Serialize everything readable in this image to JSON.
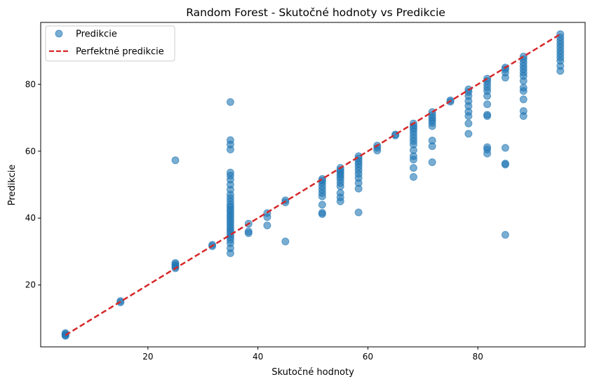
{
  "chart_data": {
    "type": "scatter",
    "title": "Random Forest - Skutočné hodnoty vs Predikcie",
    "xlabel": "Skutočné hodnoty",
    "ylabel": "Predikcie",
    "xlim": [
      0.5,
      99.5
    ],
    "ylim": [
      1.5,
      98.5
    ],
    "xticks": [
      20,
      40,
      60,
      80
    ],
    "yticks": [
      20,
      40,
      60,
      80
    ],
    "grid": false,
    "legend_position": "upper-left",
    "legend": [
      "Predikcie",
      "Perfektné predikcie"
    ],
    "colors": {
      "points": "#1f77b4",
      "perfect_line": "#d62728"
    },
    "series": [
      {
        "name": "Predikcie",
        "points": [
          [
            5,
            5
          ],
          [
            5,
            5.3
          ],
          [
            5,
            5.6
          ],
          [
            5,
            4.8
          ],
          [
            15,
            14.8
          ],
          [
            15,
            15.2
          ],
          [
            25,
            25
          ],
          [
            25,
            25.4
          ],
          [
            25,
            25.8
          ],
          [
            25,
            26.2
          ],
          [
            25,
            26.6
          ],
          [
            25,
            57.3
          ],
          [
            31.7,
            31.6
          ],
          [
            31.7,
            32
          ],
          [
            35,
            29.5
          ],
          [
            35,
            31
          ],
          [
            35,
            32.5
          ],
          [
            35,
            33.5
          ],
          [
            35,
            34.3
          ],
          [
            35,
            35
          ],
          [
            35,
            35.8
          ],
          [
            35,
            36.5
          ],
          [
            35,
            37.2
          ],
          [
            35,
            38
          ],
          [
            35,
            38.8
          ],
          [
            35,
            39.5
          ],
          [
            35,
            40.3
          ],
          [
            35,
            41
          ],
          [
            35,
            41.8
          ],
          [
            35,
            42.5
          ],
          [
            35,
            43.3
          ],
          [
            35,
            44
          ],
          [
            35,
            45
          ],
          [
            35,
            46
          ],
          [
            35,
            47
          ],
          [
            35,
            48.5
          ],
          [
            35,
            50
          ],
          [
            35,
            51.5
          ],
          [
            35,
            52.7
          ],
          [
            35,
            53.6
          ],
          [
            35,
            60.5
          ],
          [
            35,
            62
          ],
          [
            35,
            63.3
          ],
          [
            35,
            74.7
          ],
          [
            38.3,
            35.5
          ],
          [
            38.3,
            36
          ],
          [
            38.3,
            38.3
          ],
          [
            41.7,
            37.8
          ],
          [
            41.7,
            40.3
          ],
          [
            41.7,
            41.5
          ],
          [
            45,
            33
          ],
          [
            45,
            44.7
          ],
          [
            45,
            45.3
          ],
          [
            51.7,
            41.2
          ],
          [
            51.7,
            41.6
          ],
          [
            51.7,
            44
          ],
          [
            51.7,
            46.5
          ],
          [
            51.7,
            47.5
          ],
          [
            51.7,
            48.5
          ],
          [
            51.7,
            49.5
          ],
          [
            51.7,
            50.5
          ],
          [
            51.7,
            51.2
          ],
          [
            51.7,
            51.7
          ],
          [
            55,
            45
          ],
          [
            55,
            46.2
          ],
          [
            55,
            47.5
          ],
          [
            55,
            49.5
          ],
          [
            55,
            50.5
          ],
          [
            55,
            51.5
          ],
          [
            55,
            52.3
          ],
          [
            55,
            53
          ],
          [
            55,
            53.7
          ],
          [
            55,
            54.3
          ],
          [
            55,
            55
          ],
          [
            58.3,
            41.7
          ],
          [
            58.3,
            48.8
          ],
          [
            58.3,
            50.5
          ],
          [
            58.3,
            52
          ],
          [
            58.3,
            53.2
          ],
          [
            58.3,
            54.3
          ],
          [
            58.3,
            55.3
          ],
          [
            58.3,
            56.2
          ],
          [
            58.3,
            57
          ],
          [
            58.3,
            57.8
          ],
          [
            58.3,
            58.5
          ],
          [
            61.7,
            60.2
          ],
          [
            61.7,
            61
          ],
          [
            61.7,
            61.7
          ],
          [
            65,
            65
          ],
          [
            65,
            64.7
          ],
          [
            68.3,
            52.3
          ],
          [
            68.3,
            55
          ],
          [
            68.3,
            57.5
          ],
          [
            68.3,
            58.5
          ],
          [
            68.3,
            60.3
          ],
          [
            68.3,
            62
          ],
          [
            68.3,
            63
          ],
          [
            68.3,
            64
          ],
          [
            68.3,
            65
          ],
          [
            68.3,
            66
          ],
          [
            68.3,
            66.8
          ],
          [
            68.3,
            67.5
          ],
          [
            68.3,
            68.3
          ],
          [
            71.7,
            56.7
          ],
          [
            71.7,
            61.5
          ],
          [
            71.7,
            63.2
          ],
          [
            71.7,
            67.5
          ],
          [
            71.7,
            68.5
          ],
          [
            71.7,
            69.3
          ],
          [
            71.7,
            70
          ],
          [
            71.7,
            70.8
          ],
          [
            71.7,
            71.7
          ],
          [
            75,
            74.8
          ],
          [
            75,
            75.2
          ],
          [
            78.3,
            65.2
          ],
          [
            78.3,
            68.3
          ],
          [
            78.3,
            70.5
          ],
          [
            78.3,
            71.8
          ],
          [
            78.3,
            73.5
          ],
          [
            78.3,
            75
          ],
          [
            78.3,
            76.5
          ],
          [
            78.3,
            77.7
          ],
          [
            78.3,
            78.5
          ],
          [
            81.7,
            59.3
          ],
          [
            81.7,
            60.5
          ],
          [
            81.7,
            61.2
          ],
          [
            81.7,
            70.5
          ],
          [
            81.7,
            70.9
          ],
          [
            81.7,
            74
          ],
          [
            81.7,
            76.5
          ],
          [
            81.7,
            78
          ],
          [
            81.7,
            79
          ],
          [
            81.7,
            80
          ],
          [
            81.7,
            81
          ],
          [
            81.7,
            81.7
          ],
          [
            85,
            35
          ],
          [
            85,
            56
          ],
          [
            85,
            56.3
          ],
          [
            85,
            61
          ],
          [
            85,
            82
          ],
          [
            85,
            83.5
          ],
          [
            85,
            84.5
          ],
          [
            85,
            85
          ],
          [
            88.3,
            70.5
          ],
          [
            88.3,
            72
          ],
          [
            88.3,
            75.5
          ],
          [
            88.3,
            78
          ],
          [
            88.3,
            79
          ],
          [
            88.3,
            81
          ],
          [
            88.3,
            82.5
          ],
          [
            88.3,
            83.5
          ],
          [
            88.3,
            84.5
          ],
          [
            88.3,
            85.5
          ],
          [
            88.3,
            86.5
          ],
          [
            88.3,
            87.5
          ],
          [
            88.3,
            88.3
          ],
          [
            95,
            84
          ],
          [
            95,
            85.5
          ],
          [
            95,
            87
          ],
          [
            95,
            88
          ],
          [
            95,
            89
          ],
          [
            95,
            90
          ],
          [
            95,
            91
          ],
          [
            95,
            92
          ],
          [
            95,
            93
          ],
          [
            95,
            94
          ],
          [
            95,
            95
          ]
        ]
      },
      {
        "name": "Perfektné predikcie",
        "line": [
          [
            5,
            5
          ],
          [
            95,
            95
          ]
        ]
      }
    ]
  }
}
